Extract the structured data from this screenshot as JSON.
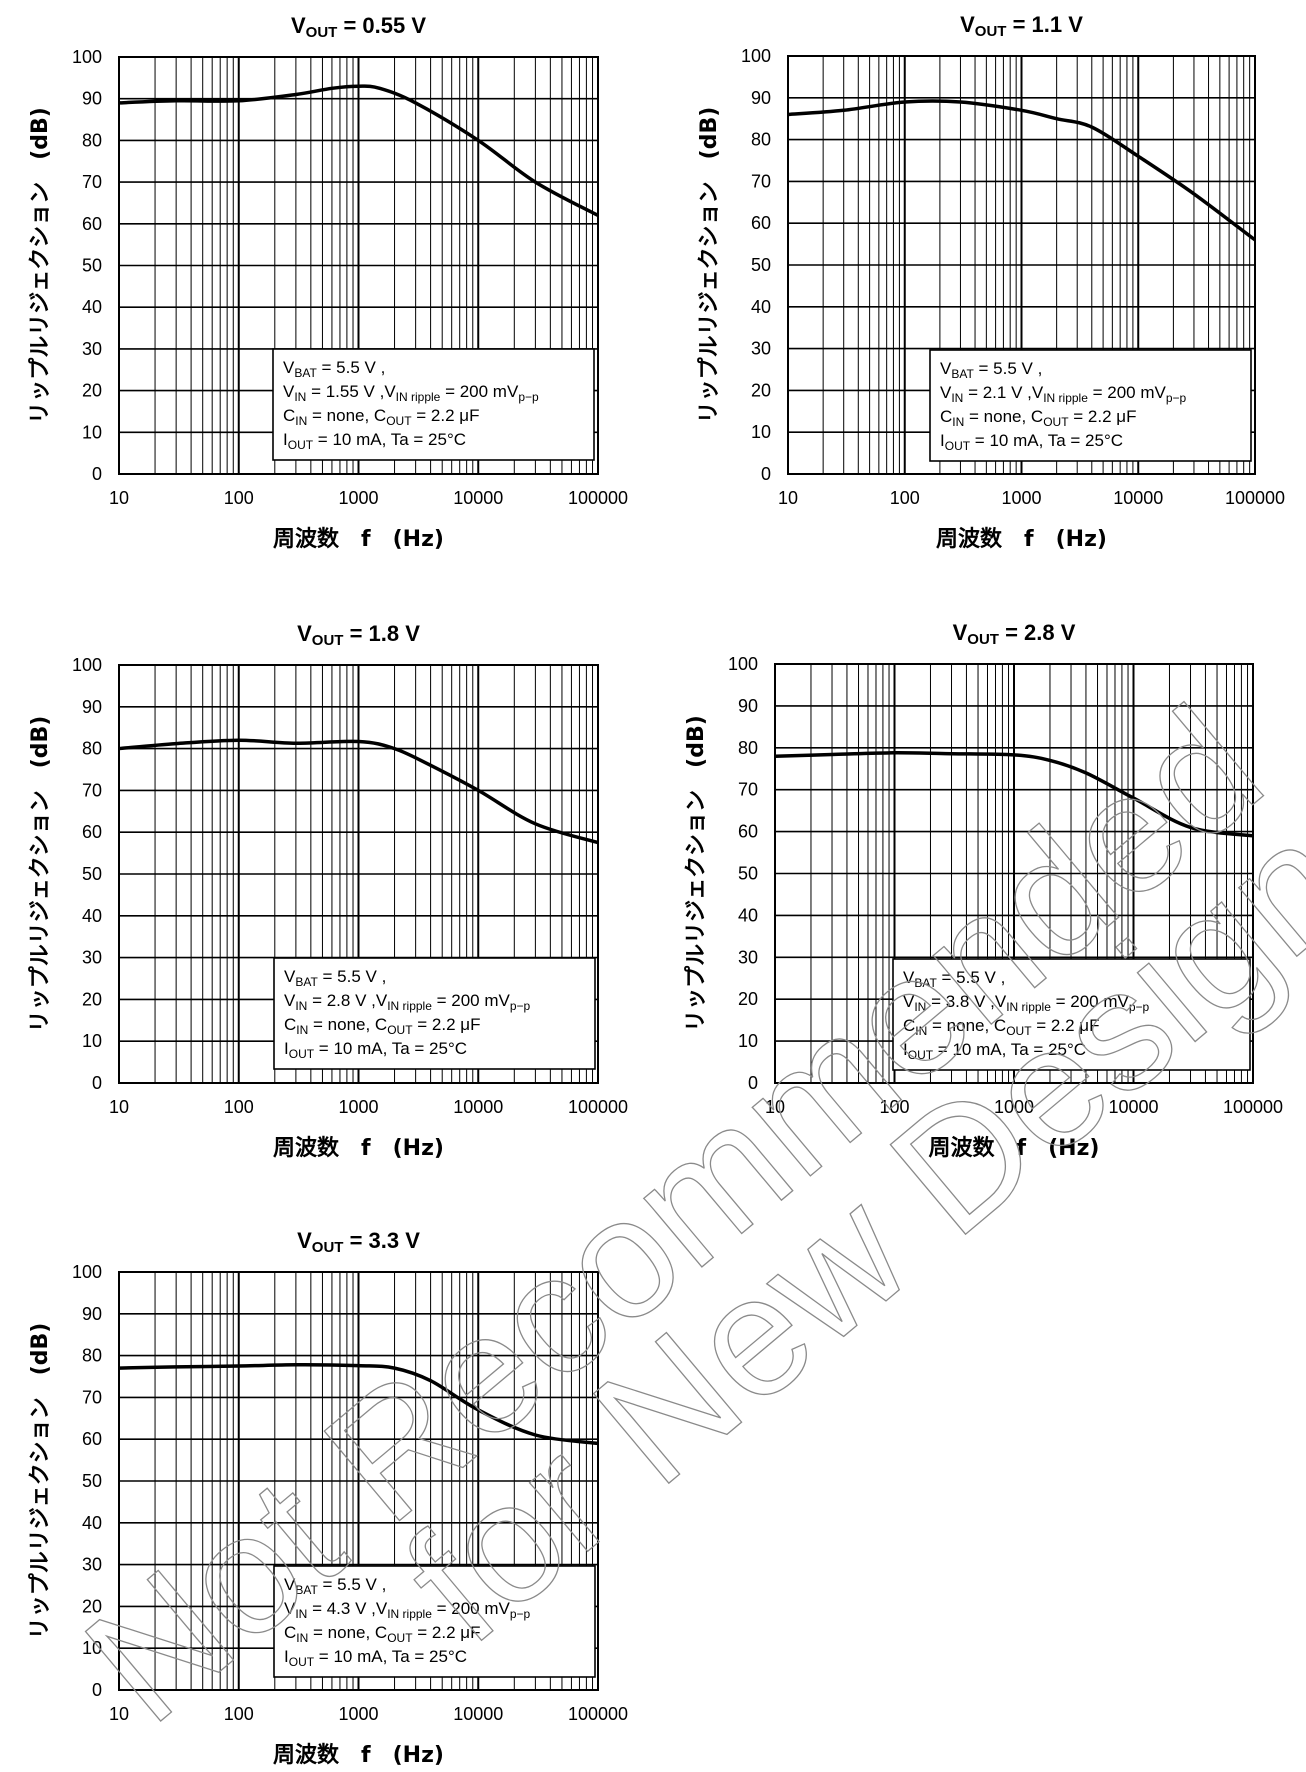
{
  "watermark": [
    "Not Recommended",
    "for New Design"
  ],
  "chart_data": [
    {
      "type": "line",
      "title_main": "V",
      "title_sub": "OUT",
      "title_rest": " = 0.55 V",
      "xlabel": "周波数　f　(Hz)",
      "ylabel": "リップルリジェクション　(dB)",
      "x_scale": "log",
      "xlim": [
        10,
        100000
      ],
      "ylim": [
        0,
        100
      ],
      "x_ticks": [
        "10",
        "100",
        "1000",
        "10000",
        "100000"
      ],
      "y_ticks": [
        "0",
        "10",
        "20",
        "30",
        "40",
        "50",
        "60",
        "70",
        "80",
        "90",
        "100"
      ],
      "grid": true,
      "conditions": [
        [
          {
            "t": "V"
          },
          {
            "t": "BAT",
            "s": "sub"
          },
          {
            "t": " = 5.5 V ,"
          }
        ],
        [
          {
            "t": "V"
          },
          {
            "t": "IN",
            "s": "sub"
          },
          {
            "t": " = 1.55 V ,V"
          },
          {
            "t": "IN ripple",
            "s": "sub"
          },
          {
            "t": " = 200 mV"
          },
          {
            "t": "p−p",
            "s": "sub"
          }
        ],
        [
          {
            "t": "C"
          },
          {
            "t": "IN",
            "s": "sub"
          },
          {
            "t": " = none, C"
          },
          {
            "t": "OUT",
            "s": "sub"
          },
          {
            "t": " = 2.2 μF"
          }
        ],
        [
          {
            "t": "I"
          },
          {
            "t": "OUT",
            "s": "sub"
          },
          {
            "t": " = 10 mA, Ta = 25°C"
          }
        ]
      ],
      "series": [
        {
          "x": [
            10,
            30,
            100,
            300,
            600,
            1000,
            1500,
            3000,
            10000,
            30000,
            100000
          ],
          "y": [
            89,
            89.5,
            89.5,
            91,
            92.5,
            93,
            92.5,
            89,
            80,
            70,
            62
          ]
        }
      ]
    },
    {
      "type": "line",
      "title_main": "V",
      "title_sub": "OUT",
      "title_rest": " = 1.1 V",
      "xlabel": "周波数　f　(Hz)",
      "ylabel": "リップルリジェクション　(dB)",
      "x_scale": "log",
      "xlim": [
        10,
        100000
      ],
      "ylim": [
        0,
        100
      ],
      "x_ticks": [
        "10",
        "100",
        "1000",
        "10000",
        "100000"
      ],
      "y_ticks": [
        "0",
        "10",
        "20",
        "30",
        "40",
        "50",
        "60",
        "70",
        "80",
        "90",
        "100"
      ],
      "grid": true,
      "conditions": [
        [
          {
            "t": "V"
          },
          {
            "t": "BAT",
            "s": "sub"
          },
          {
            "t": " = 5.5 V ,"
          }
        ],
        [
          {
            "t": "V"
          },
          {
            "t": "IN",
            "s": "sub"
          },
          {
            "t": " = 2.1 V ,V"
          },
          {
            "t": "IN ripple",
            "s": "sub"
          },
          {
            "t": " = 200 mV"
          },
          {
            "t": "p−p",
            "s": "sub"
          }
        ],
        [
          {
            "t": "C"
          },
          {
            "t": "IN",
            "s": "sub"
          },
          {
            "t": " = none, C"
          },
          {
            "t": "OUT",
            "s": "sub"
          },
          {
            "t": " = 2.2 μF"
          }
        ],
        [
          {
            "t": "I"
          },
          {
            "t": "OUT",
            "s": "sub"
          },
          {
            "t": " = 10 mA, Ta = 25°C"
          }
        ]
      ],
      "series": [
        {
          "x": [
            10,
            30,
            100,
            300,
            1000,
            2000,
            4000,
            10000,
            30000,
            100000
          ],
          "y": [
            86,
            87,
            89,
            89,
            87,
            85,
            83,
            76,
            67,
            56
          ]
        }
      ]
    },
    {
      "type": "line",
      "title_main": "V",
      "title_sub": "OUT",
      "title_rest": " = 1.8 V",
      "xlabel": "周波数　f　(Hz)",
      "ylabel": "リップルリジェクション　(dB)",
      "x_scale": "log",
      "xlim": [
        10,
        100000
      ],
      "ylim": [
        0,
        100
      ],
      "x_ticks": [
        "10",
        "100",
        "1000",
        "10000",
        "100000"
      ],
      "y_ticks": [
        "0",
        "10",
        "20",
        "30",
        "40",
        "50",
        "60",
        "70",
        "80",
        "90",
        "100"
      ],
      "grid": true,
      "conditions": [
        [
          {
            "t": "V"
          },
          {
            "t": "BAT",
            "s": "sub"
          },
          {
            "t": " = 5.5 V ,"
          }
        ],
        [
          {
            "t": "V"
          },
          {
            "t": "IN",
            "s": "sub"
          },
          {
            "t": " = 2.8 V ,V"
          },
          {
            "t": "IN ripple",
            "s": "sub"
          },
          {
            "t": " = 200 mV"
          },
          {
            "t": "p−p",
            "s": "sub"
          }
        ],
        [
          {
            "t": "C"
          },
          {
            "t": "IN",
            "s": "sub"
          },
          {
            "t": " = none, C"
          },
          {
            "t": "OUT",
            "s": "sub"
          },
          {
            "t": " = 2.2 μF"
          }
        ],
        [
          {
            "t": "I"
          },
          {
            "t": "OUT",
            "s": "sub"
          },
          {
            "t": " = 10 mA, Ta = 25°C"
          }
        ]
      ],
      "series": [
        {
          "x": [
            10,
            30,
            100,
            300,
            1000,
            2000,
            4000,
            10000,
            30000,
            100000
          ],
          "y": [
            80,
            81.2,
            82,
            81.3,
            81.7,
            80,
            76,
            70,
            62,
            57.5
          ]
        }
      ]
    },
    {
      "type": "line",
      "title_main": "V",
      "title_sub": "OUT",
      "title_rest": " = 2.8 V",
      "xlabel": "周波数　f　(Hz)",
      "ylabel": "リップルリジェクション　(dB)",
      "x_scale": "log",
      "xlim": [
        10,
        100000
      ],
      "ylim": [
        0,
        100
      ],
      "x_ticks": [
        "10",
        "100",
        "1000",
        "10000",
        "100000"
      ],
      "y_ticks": [
        "0",
        "10",
        "20",
        "30",
        "40",
        "50",
        "60",
        "70",
        "80",
        "90",
        "100"
      ],
      "grid": true,
      "conditions": [
        [
          {
            "t": "V"
          },
          {
            "t": "BAT",
            "s": "sub"
          },
          {
            "t": " = 5.5 V ,"
          }
        ],
        [
          {
            "t": "V"
          },
          {
            "t": "IN",
            "s": "sub"
          },
          {
            "t": " = 3.8 V ,V"
          },
          {
            "t": "IN ripple",
            "s": "sub"
          },
          {
            "t": " = 200 mV"
          },
          {
            "t": "p−p",
            "s": "sub"
          }
        ],
        [
          {
            "t": "C"
          },
          {
            "t": "IN",
            "s": "sub"
          },
          {
            "t": " = none, C"
          },
          {
            "t": "OUT",
            "s": "sub"
          },
          {
            "t": " = 2.2 μF"
          }
        ],
        [
          {
            "t": "I"
          },
          {
            "t": "OUT",
            "s": "sub"
          },
          {
            "t": " = 10 mA, Ta = 25°C"
          }
        ]
      ],
      "series": [
        {
          "x": [
            10,
            30,
            100,
            300,
            1000,
            2000,
            4000,
            10000,
            30000,
            100000
          ],
          "y": [
            78,
            78.4,
            78.8,
            78.6,
            78.3,
            77,
            74,
            68,
            61,
            59
          ]
        }
      ]
    },
    {
      "type": "line",
      "title_main": "V",
      "title_sub": "OUT",
      "title_rest": " = 3.3 V",
      "xlabel": "周波数　f　(Hz)",
      "ylabel": "リップルリジェクション　(dB)",
      "x_scale": "log",
      "xlim": [
        10,
        100000
      ],
      "ylim": [
        0,
        100
      ],
      "x_ticks": [
        "10",
        "100",
        "1000",
        "10000",
        "100000"
      ],
      "y_ticks": [
        "0",
        "10",
        "20",
        "30",
        "40",
        "50",
        "60",
        "70",
        "80",
        "90",
        "100"
      ],
      "grid": true,
      "conditions": [
        [
          {
            "t": "V"
          },
          {
            "t": "BAT",
            "s": "sub"
          },
          {
            "t": " = 5.5 V ,"
          }
        ],
        [
          {
            "t": "V"
          },
          {
            "t": "IN",
            "s": "sub"
          },
          {
            "t": " = 4.3 V ,V"
          },
          {
            "t": "IN ripple",
            "s": "sub"
          },
          {
            "t": " = 200 mV"
          },
          {
            "t": "p−p",
            "s": "sub"
          }
        ],
        [
          {
            "t": "C"
          },
          {
            "t": "IN",
            "s": "sub"
          },
          {
            "t": " = none, C"
          },
          {
            "t": "OUT",
            "s": "sub"
          },
          {
            "t": " = 2.2 μF"
          }
        ],
        [
          {
            "t": "I"
          },
          {
            "t": "OUT",
            "s": "sub"
          },
          {
            "t": " = 10 mA, Ta = 25°C"
          }
        ]
      ],
      "series": [
        {
          "x": [
            10,
            30,
            100,
            300,
            1000,
            2000,
            4000,
            10000,
            30000,
            100000
          ],
          "y": [
            77,
            77.3,
            77.5,
            77.8,
            77.6,
            77,
            74,
            67,
            61,
            59
          ]
        }
      ]
    }
  ]
}
